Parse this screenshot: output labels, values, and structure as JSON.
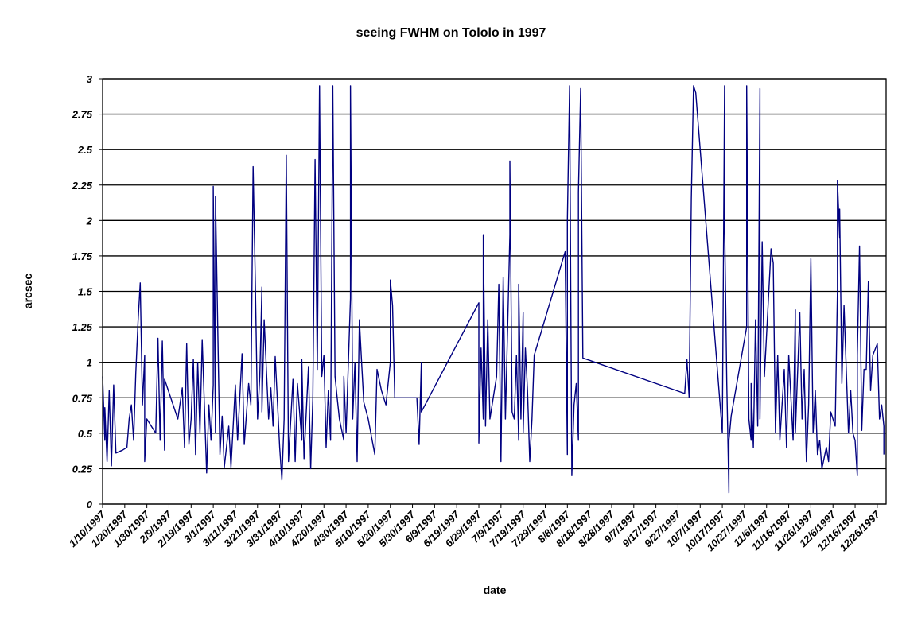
{
  "chart_data": {
    "type": "line",
    "title": "seeing FWHM on Tololo in 1997",
    "xlabel": "date",
    "ylabel": "arcsec",
    "color": "#000080",
    "grid": true,
    "xlim": [
      "1/10/1997",
      "12/30/1997"
    ],
    "xticks": [
      "1/10/1997",
      "1/20/1997",
      "1/30/1997",
      "2/9/1997",
      "2/19/1997",
      "3/1/1997",
      "3/11/1997",
      "3/21/1997",
      "3/31/1997",
      "4/10/1997",
      "4/20/1997",
      "4/30/1997",
      "5/10/1997",
      "5/20/1997",
      "5/30/1997",
      "6/9/1997",
      "6/19/1997",
      "6/29/1997",
      "7/9/1997",
      "7/19/1997",
      "7/29/1997",
      "8/8/1997",
      "8/18/1997",
      "8/28/1997",
      "9/7/1997",
      "9/17/1997",
      "9/27/1997",
      "10/7/1997",
      "10/17/1997",
      "10/27/1997",
      "11/6/1997",
      "11/16/1997",
      "11/26/1997",
      "12/6/1997",
      "12/16/1997",
      "12/26/1997"
    ],
    "ylim": [
      0,
      3
    ],
    "yticks": [
      0,
      0.25,
      0.5,
      0.75,
      1,
      1.25,
      1.5,
      1.75,
      2,
      2.25,
      2.5,
      2.75,
      3
    ],
    "x": [
      "1/10/1997",
      "1/11/1997",
      "1/11/1997",
      "1/12/1997",
      "1/13/1997",
      "1/14/1997",
      "1/15/1997",
      "1/16/1997",
      "1/19/1997",
      "1/21/1997",
      "1/22/1997",
      "1/23/1997",
      "1/24/1997",
      "1/25/1997",
      "1/26/1997",
      "1/27/1997",
      "1/28/1997",
      "1/29/1997",
      "1/29/1997",
      "1/30/1997",
      "2/3/1997",
      "2/4/1997",
      "2/5/1997",
      "2/6/1997",
      "2/7/1997",
      "2/7/1997",
      "2/13/1997",
      "2/15/1997",
      "2/16/1997",
      "2/17/1997",
      "2/18/1997",
      "2/19/1997",
      "2/20/1997",
      "2/21/1997",
      "2/22/1997",
      "2/23/1997",
      "2/24/1997",
      "2/26/1997",
      "2/27/1997",
      "2/28/1997",
      "3/1/1997",
      "3/1/1997",
      "3/2/1997",
      "3/2/1997",
      "3/4/1997",
      "3/5/1997",
      "3/6/1997",
      "3/8/1997",
      "3/9/1997",
      "3/11/1997",
      "3/12/1997",
      "3/14/1997",
      "3/15/1997",
      "3/17/1997",
      "3/18/1997",
      "3/19/1997",
      "3/20/1997",
      "3/21/1997",
      "3/22/1997",
      "3/23/1997",
      "3/23/1997",
      "3/24/1997",
      "3/26/1997",
      "3/27/1997",
      "3/28/1997",
      "3/29/1997",
      "3/31/1997",
      "4/1/1997",
      "4/2/1997",
      "4/3/1997",
      "4/4/1997",
      "4/6/1997",
      "4/7/1997",
      "4/8/1997",
      "4/10/1997",
      "4/10/1997",
      "4/11/1997",
      "4/13/1997",
      "4/14/1997",
      "4/15/1997",
      "4/16/1997",
      "4/17/1997",
      "4/18/1997",
      "4/19/1997",
      "4/20/1997",
      "4/21/1997",
      "4/22/1997",
      "4/23/1997",
      "4/24/1997",
      "4/25/1997",
      "4/26/1997",
      "4/27/1997",
      "4/29/1997",
      "4/29/1997",
      "4/30/1997",
      "5/2/1997",
      "5/2/1997",
      "5/3/1997",
      "5/4/1997",
      "5/5/1997",
      "5/6/1997",
      "5/7/1997",
      "5/8/1997",
      "5/10/1997",
      "5/13/1997",
      "5/14/1997",
      "5/16/1997",
      "5/18/1997",
      "5/20/1997",
      "5/20/1997",
      "5/21/1997",
      "5/22/1997",
      "6/1/1997",
      "6/2/1997",
      "6/3/1997",
      "6/3/1997",
      "6/29/1997",
      "6/29/1997",
      "6/30/1997",
      "7/1/1997",
      "7/1/1997",
      "7/2/1997",
      "7/3/1997",
      "7/4/1997",
      "7/7/1997",
      "7/8/1997",
      "7/9/1997",
      "7/10/1997",
      "7/11/1997",
      "7/13/1997",
      "7/13/1997",
      "7/14/1997",
      "7/15/1997",
      "7/16/1997",
      "7/17/1997",
      "7/17/1997",
      "7/18/1997",
      "7/19/1997",
      "7/19/1997",
      "7/20/1997",
      "7/21/1997",
      "7/22/1997",
      "7/23/1997",
      "7/24/1997",
      "8/7/1997",
      "8/8/1997",
      "8/8/1997",
      "8/9/1997",
      "8/10/1997",
      "8/11/1997",
      "8/12/1997",
      "8/13/1997",
      "8/13/1997",
      "8/14/1997",
      "8/15/1997",
      "9/30/1997",
      "10/1/1997",
      "10/2/1997",
      "10/3/1997",
      "10/4/1997",
      "10/5/1997",
      "10/17/1997",
      "10/18/1997",
      "10/18/1997",
      "10/19/1997",
      "10/20/1997",
      "10/20/1997",
      "10/21/1997",
      "10/28/1997",
      "10/28/1997",
      "10/29/1997",
      "10/30/1997",
      "10/30/1997",
      "10/31/1997",
      "11/1/1997",
      "11/2/1997",
      "11/3/1997",
      "11/3/1997",
      "11/4/1997",
      "11/5/1997",
      "11/8/1997",
      "11/9/1997",
      "11/10/1997",
      "11/11/1997",
      "11/12/1997",
      "11/14/1997",
      "11/15/1997",
      "11/16/1997",
      "11/18/1997",
      "11/19/1997",
      "11/19/1997",
      "11/21/1997",
      "11/22/1997",
      "11/23/1997",
      "11/24/1997",
      "11/25/1997",
      "11/26/1997",
      "11/27/1997",
      "11/28/1997",
      "11/29/1997",
      "11/30/1997",
      "12/1/1997",
      "12/3/1997",
      "12/4/1997",
      "12/5/1997",
      "12/7/1997",
      "12/8/1997",
      "12/8/1997",
      "12/9/1997",
      "12/9/1997",
      "12/10/1997",
      "12/11/1997",
      "12/13/1997",
      "12/14/1997",
      "12/15/1997",
      "12/16/1997",
      "12/17/1997",
      "12/17/1997",
      "12/18/1997",
      "12/19/1997",
      "12/20/1997",
      "12/21/1997",
      "12/22/1997",
      "12/23/1997",
      "12/24/1997",
      "12/26/1997",
      "12/27/1997",
      "12/28/1997",
      "12/29/1997",
      "12/29/1997"
    ],
    "values": [
      0.9,
      0.45,
      0.68,
      0.3,
      0.8,
      0.27,
      0.84,
      0.36,
      0.38,
      0.4,
      0.6,
      0.7,
      0.45,
      0.92,
      1.28,
      1.56,
      0.7,
      1.05,
      0.3,
      0.6,
      0.5,
      1.17,
      0.45,
      1.15,
      0.38,
      0.88,
      0.6,
      0.82,
      0.4,
      1.13,
      0.42,
      0.6,
      1.02,
      0.35,
      1.0,
      0.5,
      1.16,
      0.22,
      0.7,
      0.45,
      0.84,
      2.24,
      0.5,
      2.17,
      0.35,
      0.62,
      0.26,
      0.55,
      0.26,
      0.84,
      0.45,
      1.06,
      0.42,
      0.85,
      0.7,
      2.38,
      1.56,
      0.6,
      0.9,
      1.53,
      0.65,
      1.3,
      0.6,
      0.82,
      0.55,
      1.04,
      0.4,
      0.17,
      0.6,
      2.46,
      0.3,
      0.88,
      0.3,
      0.85,
      0.45,
      1.02,
      0.32,
      0.97,
      0.25,
      0.75,
      2.43,
      0.95,
      2.95,
      0.9,
      1.05,
      0.4,
      0.8,
      0.45,
      2.95,
      0.9,
      0.75,
      0.6,
      0.45,
      0.9,
      0.5,
      1.45,
      2.95,
      0.6,
      1.0,
      0.3,
      1.3,
      1.0,
      0.72,
      0.6,
      0.35,
      0.95,
      0.8,
      0.7,
      1.0,
      1.58,
      1.4,
      0.75,
      0.75,
      0.42,
      1.0,
      0.65,
      1.42,
      0.43,
      1.1,
      0.6,
      1.9,
      0.55,
      1.3,
      0.6,
      0.9,
      1.55,
      0.3,
      1.6,
      0.6,
      1.9,
      2.42,
      0.65,
      0.6,
      1.05,
      0.45,
      1.55,
      0.6,
      1.35,
      0.5,
      1.1,
      0.8,
      0.3,
      0.6,
      1.05,
      1.78,
      0.35,
      2.0,
      2.95,
      0.2,
      0.7,
      0.85,
      0.45,
      2.2,
      2.93,
      1.03,
      0.78,
      1.02,
      0.75,
      2.15,
      2.95,
      2.9,
      0.5,
      2.95,
      2.0,
      0.85,
      0.08,
      0.45,
      0.62,
      1.25,
      2.95,
      0.6,
      0.45,
      0.85,
      0.4,
      1.3,
      0.55,
      2.93,
      0.6,
      1.85,
      0.9,
      1.8,
      1.7,
      0.5,
      1.05,
      0.45,
      0.95,
      0.4,
      1.05,
      0.45,
      1.37,
      0.5,
      1.35,
      0.6,
      0.95,
      0.3,
      0.7,
      1.73,
      0.5,
      0.8,
      0.35,
      0.45,
      0.25,
      0.4,
      0.3,
      0.65,
      0.55,
      1.5,
      2.28,
      1.88,
      2.08,
      0.85,
      1.4,
      0.5,
      0.8,
      0.5,
      0.45,
      0.2,
      1.05,
      1.82,
      0.52,
      0.95,
      0.95,
      1.57,
      0.8,
      1.05,
      1.13,
      0.6,
      0.7,
      0.55,
      0.35
    ]
  }
}
